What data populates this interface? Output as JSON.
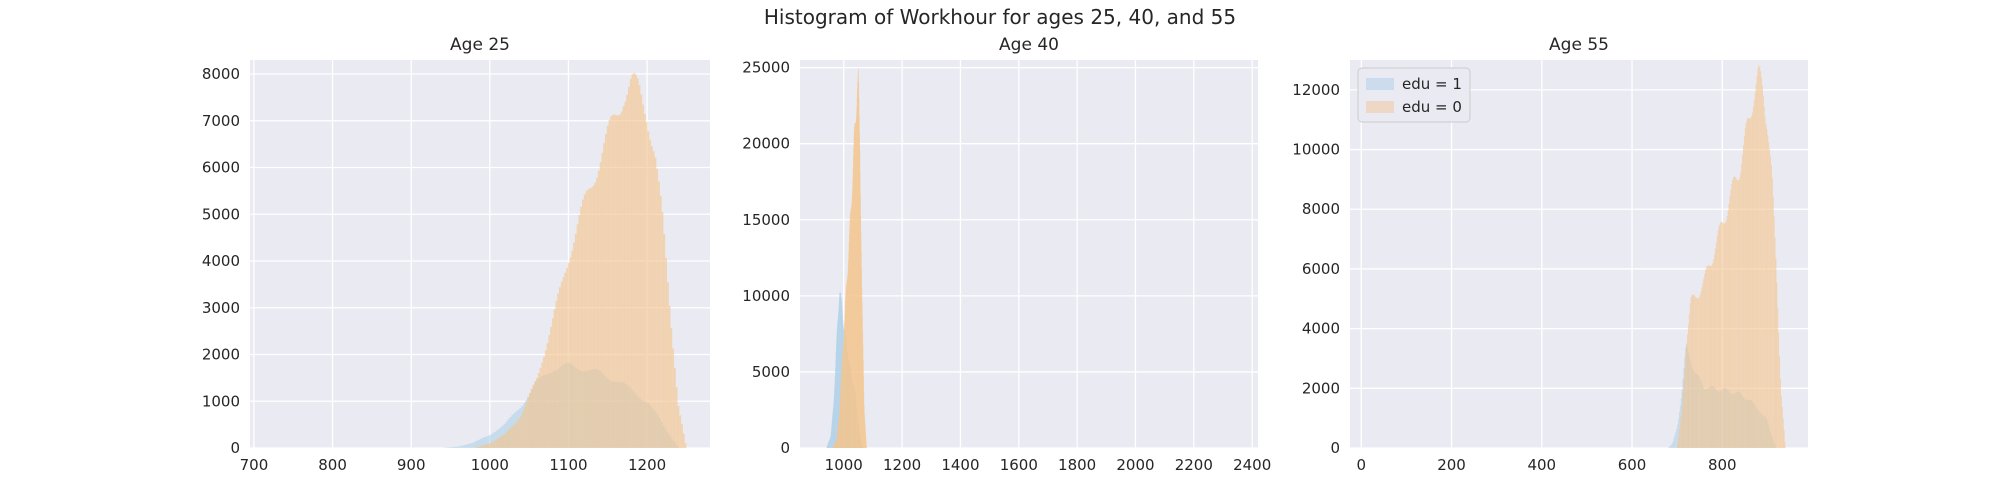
{
  "figure": {
    "title": "Histogram of Workhour for ages 25, 40, and 55"
  },
  "colors": {
    "background": "#eaeaf2",
    "edu1": "#a8cde8",
    "edu0": "#f5c48e",
    "overlap": "#c4c59a",
    "grid": "#ffffff",
    "text": "#262626"
  },
  "chart_data": [
    {
      "type": "histogram",
      "title": "Age 25",
      "xlabel": "",
      "ylabel": "",
      "xlim": [
        695,
        1280
      ],
      "ylim": [
        0,
        8300
      ],
      "xticks": [
        700,
        800,
        900,
        1000,
        1100,
        1200
      ],
      "yticks": [
        0,
        1000,
        2000,
        3000,
        4000,
        5000,
        6000,
        7000,
        8000
      ],
      "grid": true,
      "legend": null,
      "series": [
        {
          "name": "edu = 1",
          "x": [
            940,
            960,
            980,
            1000,
            1020,
            1040,
            1060,
            1080,
            1100,
            1120,
            1140,
            1160,
            1180,
            1200,
            1215,
            1230,
            1240
          ],
          "y": [
            0,
            30,
            120,
            280,
            520,
            900,
            1400,
            1700,
            1760,
            1700,
            1600,
            1450,
            1250,
            980,
            650,
            250,
            0
          ]
        },
        {
          "name": "edu = 0",
          "x": [
            980,
            1000,
            1020,
            1040,
            1060,
            1080,
            1090,
            1100,
            1120,
            1140,
            1160,
            1170,
            1180,
            1190,
            1200,
            1210,
            1220,
            1230,
            1240,
            1250
          ],
          "y": [
            0,
            100,
            300,
            700,
            1500,
            2700,
            3400,
            4100,
            5200,
            6200,
            7100,
            7600,
            7800,
            7600,
            7200,
            6300,
            4800,
            2800,
            900,
            0
          ]
        }
      ]
    },
    {
      "type": "histogram",
      "title": "Age 40",
      "xlabel": "",
      "ylabel": "",
      "xlim": [
        850,
        2420
      ],
      "ylim": [
        0,
        25500
      ],
      "xticks": [
        1000,
        1200,
        1400,
        1600,
        1800,
        2000,
        2200,
        2400
      ],
      "yticks": [
        0,
        5000,
        10000,
        15000,
        20000,
        25000
      ],
      "grid": true,
      "legend": null,
      "series": [
        {
          "name": "edu = 1",
          "x": [
            940,
            955,
            965,
            975,
            985,
            995,
            1005,
            1015,
            1025,
            1035,
            1045,
            1055,
            1065
          ],
          "y": [
            0,
            800,
            3000,
            7000,
            10500,
            9000,
            7200,
            6000,
            5000,
            4000,
            2500,
            800,
            0
          ]
        },
        {
          "name": "edu = 0",
          "x": [
            960,
            975,
            985,
            995,
            1005,
            1015,
            1025,
            1035,
            1045,
            1050,
            1055,
            1062,
            1070,
            1078
          ],
          "y": [
            0,
            500,
            2500,
            6000,
            9500,
            12500,
            16000,
            20000,
            23500,
            24000,
            20000,
            10000,
            2500,
            0
          ]
        }
      ]
    },
    {
      "type": "histogram",
      "title": "Age 55",
      "xlabel": "",
      "ylabel": "",
      "xlim": [
        -25,
        990
      ],
      "ylim": [
        0,
        13000
      ],
      "xticks": [
        0,
        200,
        400,
        600,
        800
      ],
      "yticks": [
        0,
        2000,
        4000,
        6000,
        8000,
        10000,
        12000
      ],
      "grid": true,
      "legend": "top-left",
      "series": [
        {
          "name": "edu = 1",
          "x": [
            680,
            690,
            700,
            710,
            720,
            730,
            740,
            760,
            780,
            800,
            820,
            840,
            860,
            880,
            900,
            910,
            920
          ],
          "y": [
            0,
            150,
            700,
            1800,
            3400,
            3000,
            2500,
            2050,
            2000,
            1950,
            1900,
            1800,
            1600,
            1300,
            900,
            400,
            0
          ]
        },
        {
          "name": "edu = 0",
          "x": [
            700,
            710,
            720,
            730,
            740,
            760,
            780,
            800,
            820,
            840,
            860,
            870,
            880,
            890,
            900,
            910,
            920,
            930,
            940
          ],
          "y": [
            0,
            1200,
            3500,
            4900,
            5000,
            5600,
            6500,
            7500,
            8500,
            9500,
            11000,
            12000,
            12400,
            12000,
            11000,
            9000,
            6000,
            2000,
            0
          ]
        }
      ]
    }
  ]
}
